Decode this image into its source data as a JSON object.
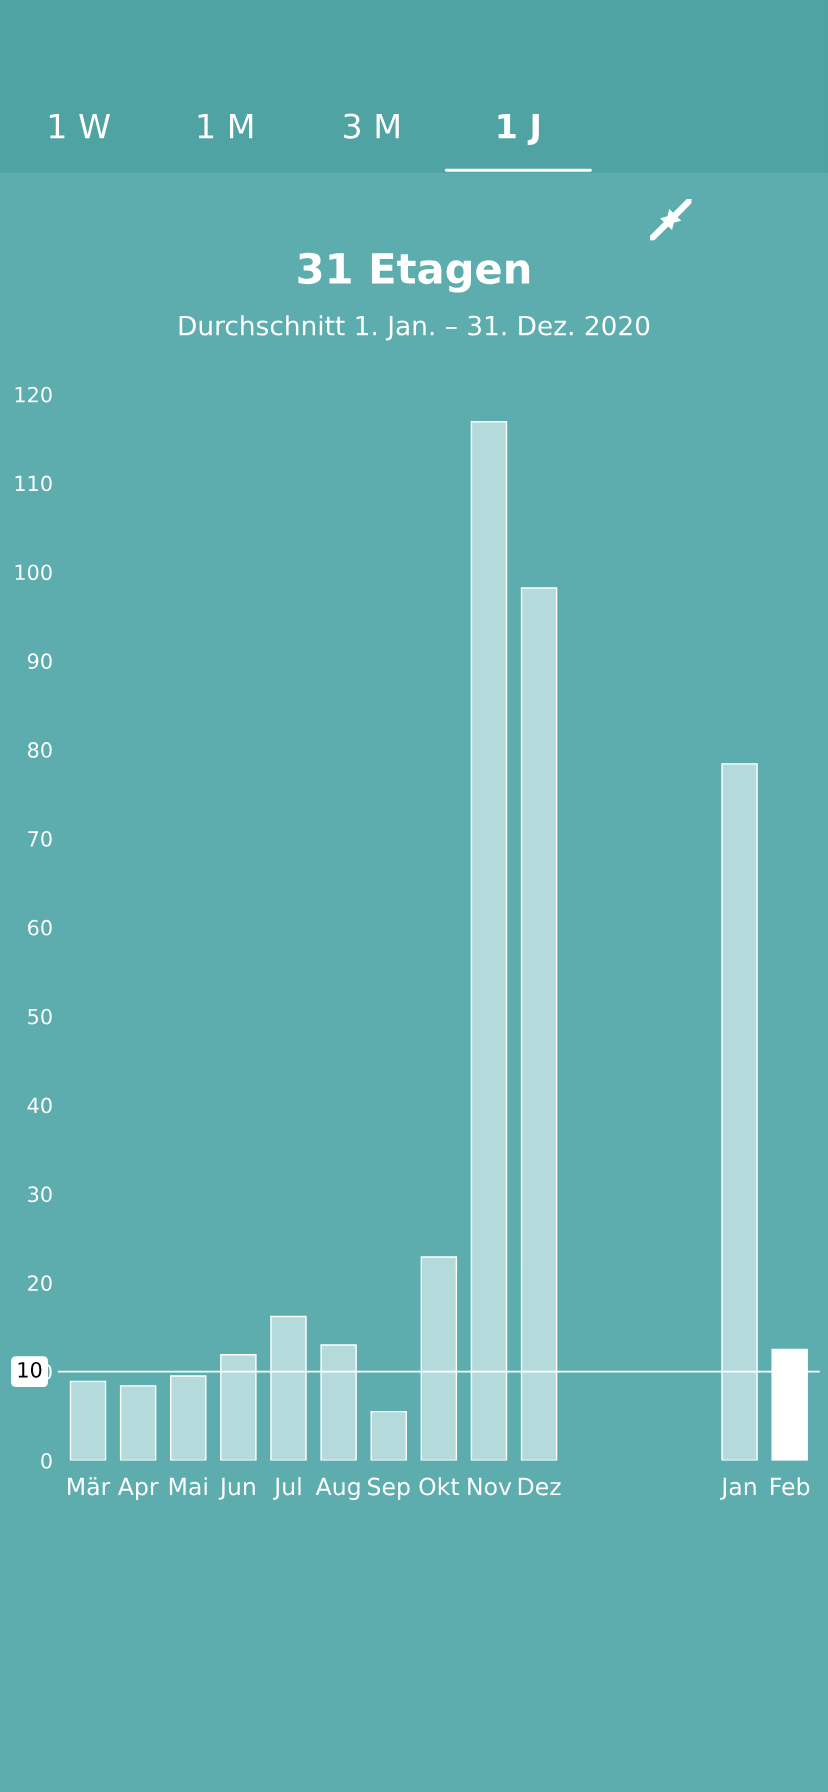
{
  "chart_data": {
    "type": "bar",
    "title": "31 Etagen",
    "subtitle": "Durchschnitt 1. Jan. – 31. Dez. 2020",
    "annotations": [
      "1 W",
      "1 M",
      "3 M",
      "1 J"
    ],
    "categories": [
      "Mär",
      "Apr",
      "Mai",
      "Jun",
      "Jul",
      "Aug",
      "Sep",
      "Okt",
      "Nov",
      "Dez",
      null,
      null,
      null,
      "Jan",
      "Feb"
    ],
    "values": [
      8.9,
      8.4,
      9.5,
      11.9,
      16.2,
      13.0,
      5.5,
      22.9,
      116.9,
      98.2,
      null,
      null,
      null,
      78.4,
      12.5
    ],
    "colors": [
      "#b4dadc",
      "#b4dadc",
      "#b4dadc",
      "#b4dadc",
      "#b4dadc",
      "#b4dadc",
      "#b4dadc",
      "#b4dadc",
      "#b4dadc",
      "#b4dadc",
      "#b4dadc",
      "#b4dadc",
      "#b4dadc",
      "#b4dadc",
      "#ffffff"
    ],
    "ylim": [
      0,
      120
    ],
    "yticks": [
      0,
      10,
      20,
      30,
      40,
      50,
      60,
      70,
      80,
      90,
      100,
      110,
      120
    ],
    "ref_lines": [
      {
        "axis": "y",
        "value": 10,
        "label": "10",
        "color": "#ffffff"
      }
    ],
    "grid": false
  }
}
